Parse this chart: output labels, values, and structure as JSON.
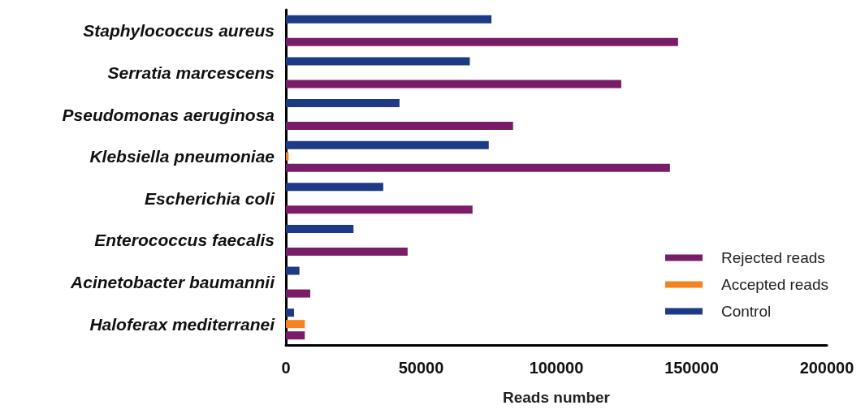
{
  "chart_data": {
    "type": "bar",
    "orientation": "horizontal",
    "xlabel": "Reads number",
    "categories": [
      "Staphylococcus aureus",
      "Serratia marcescens",
      "Pseudomonas aeruginosa",
      "Klebsiella pneumoniae",
      "Escherichia coli",
      "Enterococcus faecalis",
      "Acinetobacter baumannii",
      "Haloferax mediterranei"
    ],
    "series": [
      {
        "name": "Control",
        "color": "#1d3a87",
        "values": [
          76000,
          68000,
          42000,
          75000,
          36000,
          25000,
          5000,
          3000
        ]
      },
      {
        "name": "Accepted reads",
        "color": "#f5821f",
        "values": [
          null,
          null,
          null,
          1000,
          null,
          null,
          null,
          7000
        ]
      },
      {
        "name": "Rejected reads",
        "color": "#7a1d68",
        "values": [
          145000,
          124000,
          84000,
          142000,
          69000,
          45000,
          9000,
          7000
        ]
      }
    ],
    "xlim": [
      0,
      200000
    ],
    "xticks": [
      0,
      50000,
      100000,
      150000,
      200000
    ],
    "grid": false,
    "legend": "bottom right"
  }
}
